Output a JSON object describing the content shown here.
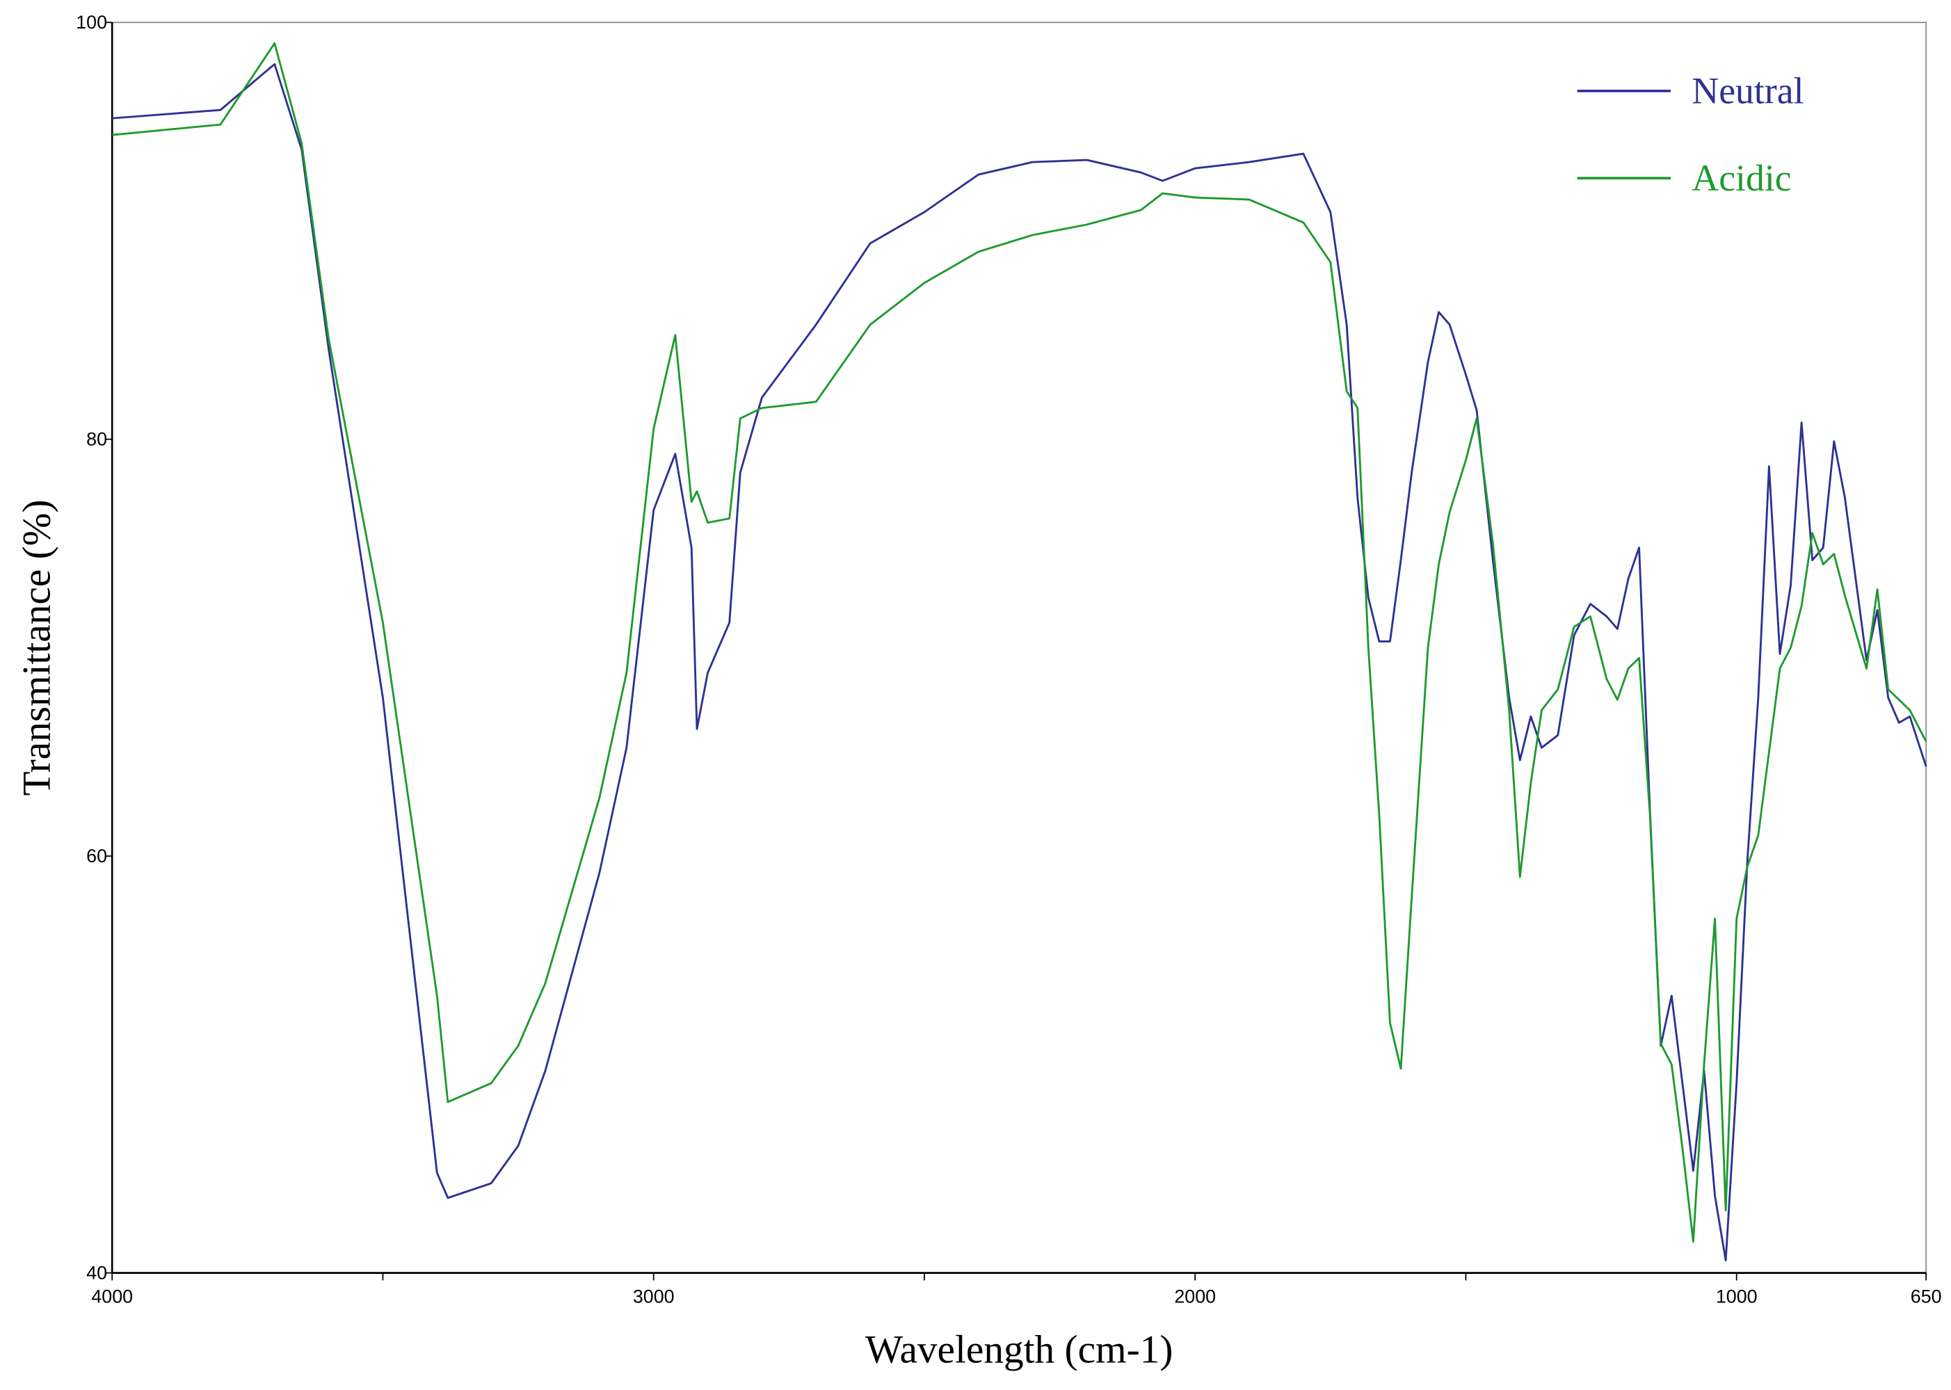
{
  "chart_data": {
    "type": "line",
    "x_label": "Wavelength (cm-1)",
    "y_label": "Transmittance (%)",
    "xlim": [
      4000,
      650
    ],
    "ylim": [
      40,
      100
    ],
    "xticks": [
      4000,
      3000,
      2000,
      1000,
      650
    ],
    "xminor_ticks": [
      3500,
      2500,
      1500
    ],
    "yticks": [
      100,
      80,
      60,
      40
    ],
    "legend": "upper right",
    "x": [
      4000,
      3800,
      3700,
      3650,
      3600,
      3500,
      3400,
      3380,
      3300,
      3250,
      3200,
      3100,
      3050,
      3000,
      2960,
      2930,
      2920,
      2900,
      2860,
      2840,
      2800,
      2700,
      2600,
      2500,
      2400,
      2300,
      2200,
      2100,
      2060,
      2000,
      1900,
      1800,
      1750,
      1720,
      1700,
      1680,
      1660,
      1640,
      1620,
      1600,
      1570,
      1550,
      1530,
      1500,
      1480,
      1450,
      1420,
      1400,
      1380,
      1360,
      1330,
      1300,
      1270,
      1240,
      1220,
      1200,
      1180,
      1160,
      1140,
      1120,
      1100,
      1080,
      1060,
      1040,
      1020,
      1000,
      980,
      960,
      940,
      920,
      900,
      880,
      860,
      840,
      820,
      800,
      760,
      740,
      720,
      700,
      680,
      650
    ],
    "series": [
      {
        "name": "Neutral",
        "color": "#2e3192",
        "values": [
          95.4,
          95.8,
          98.0,
          93.9,
          84.3,
          67.6,
          44.8,
          43.6,
          44.3,
          46.1,
          49.7,
          59.2,
          65.2,
          76.6,
          79.3,
          74.8,
          66.1,
          68.8,
          71.2,
          78.4,
          82.0,
          85.5,
          89.4,
          90.9,
          92.7,
          93.3,
          93.4,
          92.8,
          92.4,
          93.0,
          93.3,
          93.7,
          90.9,
          85.5,
          77.2,
          72.4,
          70.3,
          70.3,
          74.2,
          78.4,
          83.7,
          86.1,
          85.5,
          83.1,
          81.4,
          74.2,
          67.6,
          64.6,
          66.7,
          65.2,
          65.8,
          70.6,
          72.1,
          71.5,
          70.9,
          73.3,
          74.8,
          62.2,
          50.9,
          53.3,
          49.1,
          44.9,
          49.7,
          43.7,
          40.6,
          49.1,
          59.8,
          67.6,
          78.7,
          69.7,
          73.0,
          80.8,
          74.2,
          74.8,
          79.9,
          77.2,
          69.4,
          71.8,
          67.6,
          66.4,
          66.7,
          64.3
        ]
      },
      {
        "name": "Acidic",
        "color": "#1e9a2e",
        "values": [
          94.6,
          95.1,
          99.0,
          94.2,
          84.8,
          71.2,
          53.3,
          48.2,
          49.1,
          50.9,
          53.9,
          62.8,
          68.8,
          80.5,
          85.0,
          77.0,
          77.5,
          76.0,
          76.2,
          81.0,
          81.5,
          81.8,
          85.5,
          87.5,
          89.0,
          89.8,
          90.3,
          91.0,
          91.8,
          91.6,
          91.5,
          90.4,
          88.5,
          82.3,
          81.5,
          70.0,
          62.0,
          52.0,
          49.8,
          58.0,
          70.0,
          74.0,
          76.5,
          79.0,
          81.0,
          75.0,
          67.0,
          59.0,
          63.5,
          67.0,
          68.0,
          71.0,
          71.5,
          68.5,
          67.5,
          69.0,
          69.5,
          62.0,
          51.0,
          50.0,
          46.0,
          41.5,
          50.0,
          57.0,
          43.0,
          57.0,
          59.5,
          61.0,
          65.0,
          69.0,
          70.0,
          72.0,
          75.5,
          74.0,
          74.5,
          72.5,
          69.0,
          72.8,
          68.0,
          67.5,
          67.0,
          65.5
        ]
      }
    ]
  }
}
